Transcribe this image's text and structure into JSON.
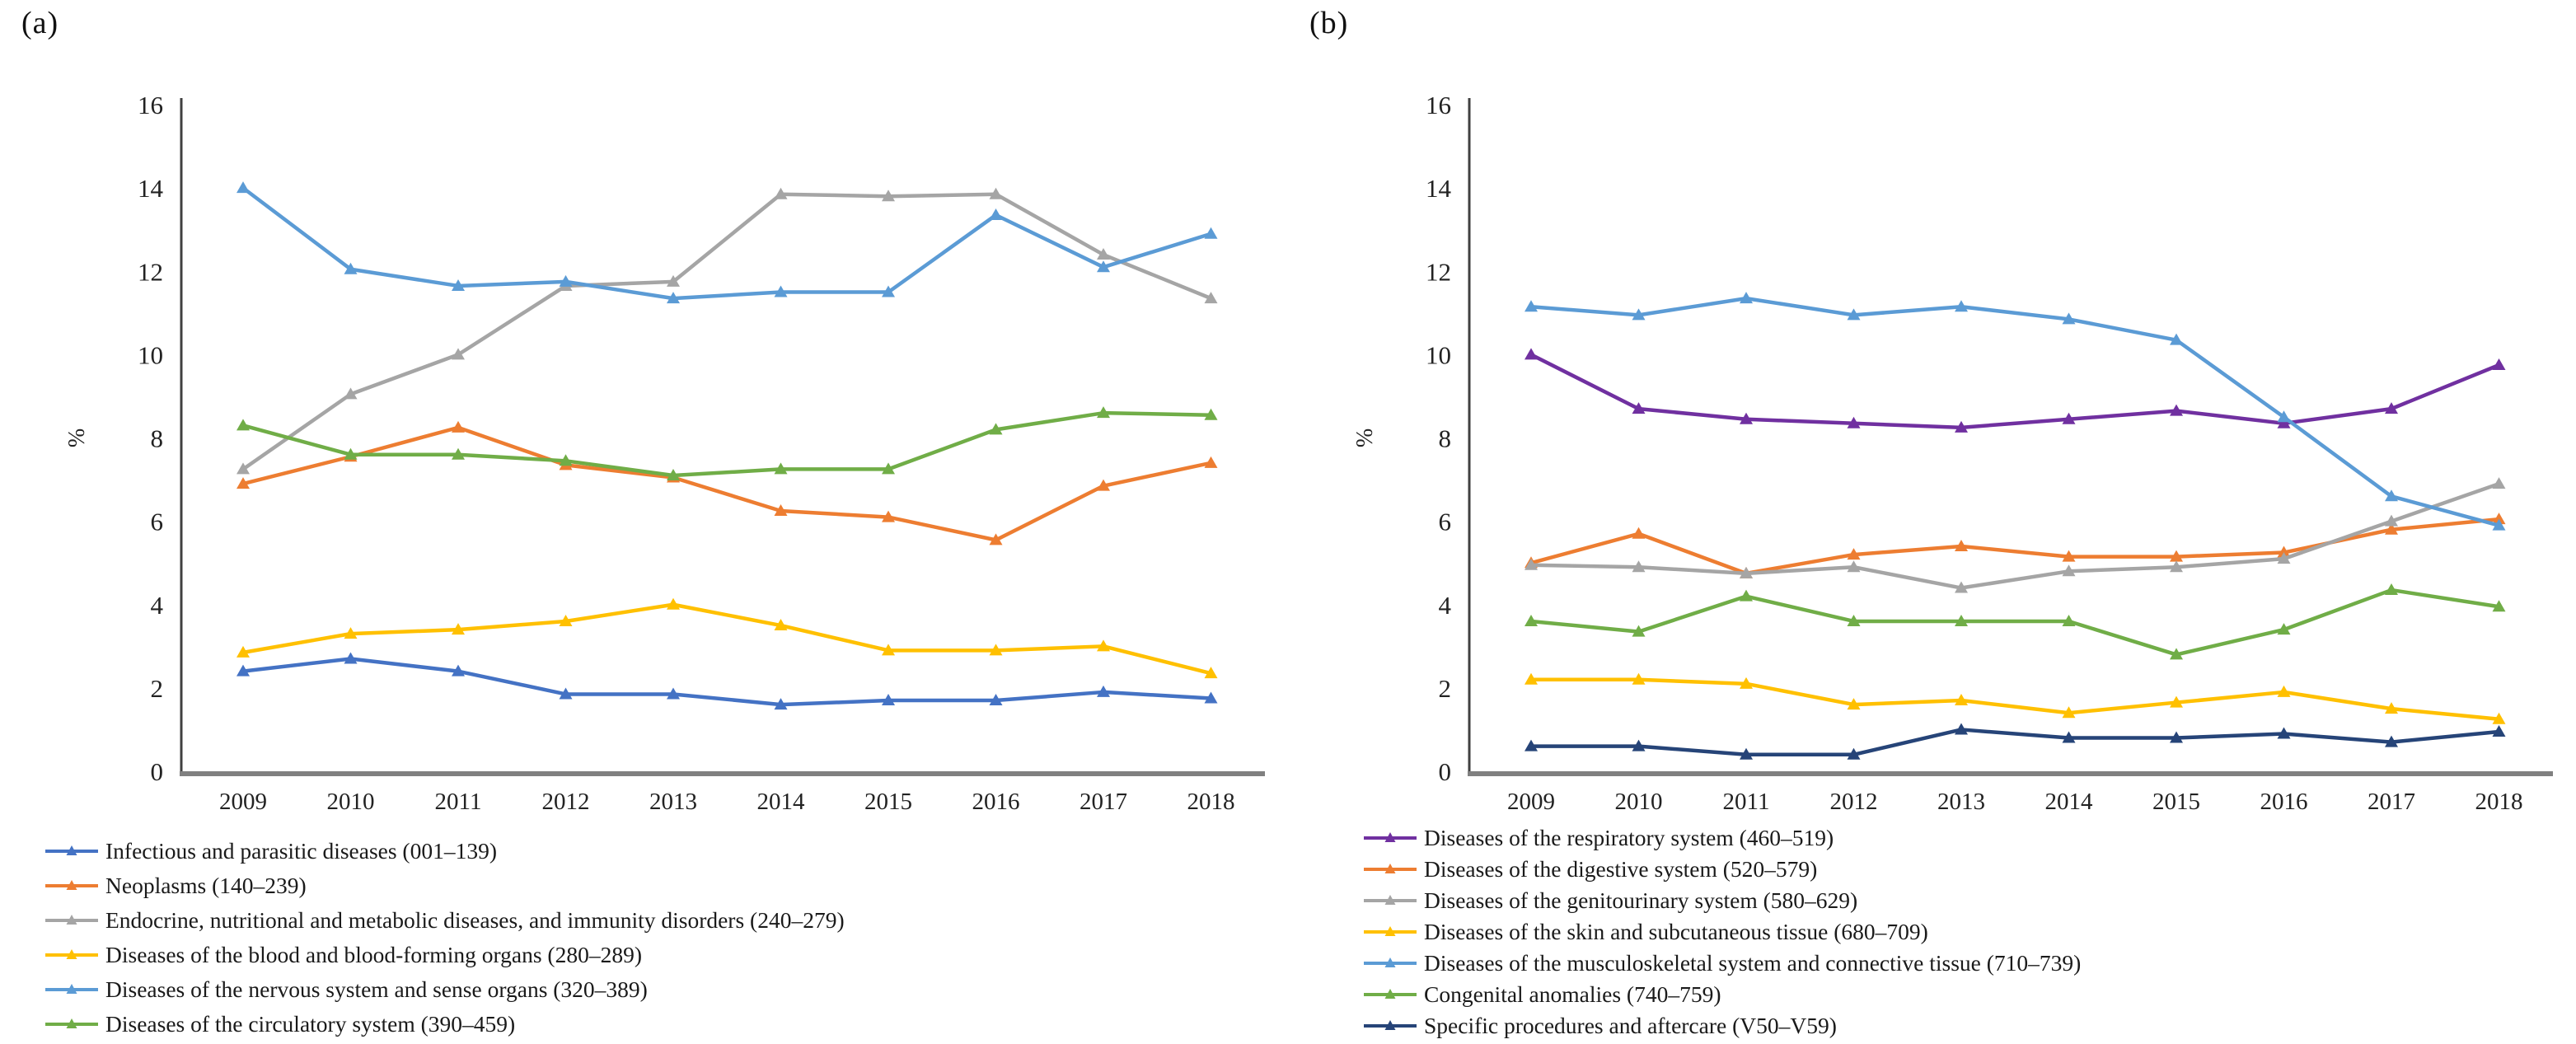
{
  "panels": [
    {
      "label": "(a)"
    },
    {
      "label": "(b)"
    }
  ],
  "chart_data": [
    {
      "type": "line",
      "title": "",
      "xlabel": "",
      "ylabel": "%",
      "ylim": [
        0,
        16
      ],
      "ytick_step": 2,
      "grid": false,
      "marker": "triangle",
      "legend_position": "below-left",
      "categories": [
        "2009",
        "2010",
        "2011",
        "2012",
        "2013",
        "2014",
        "2015",
        "2016",
        "2017",
        "2018"
      ],
      "series": [
        {
          "name": "Infectious and parasitic diseases (001–139)",
          "color": "#4472C4",
          "values": [
            2.4,
            2.7,
            2.4,
            1.85,
            1.85,
            1.6,
            1.7,
            1.7,
            1.9,
            1.75
          ]
        },
        {
          "name": "Neoplasms (140–239)",
          "color": "#ED7D31",
          "values": [
            6.9,
            7.55,
            8.25,
            7.35,
            7.05,
            6.25,
            6.1,
            5.55,
            6.85,
            7.4
          ]
        },
        {
          "name": "Endocrine, nutritional and metabolic diseases, and immunity disorders (240–279)",
          "color": "#A5A5A5",
          "values": [
            7.25,
            9.05,
            10.0,
            11.65,
            11.75,
            13.85,
            13.8,
            13.85,
            12.4,
            11.35
          ]
        },
        {
          "name": "Diseases of the blood and blood-forming organs (280–289)",
          "color": "#FFC000",
          "values": [
            2.85,
            3.3,
            3.4,
            3.6,
            4.0,
            3.5,
            2.9,
            2.9,
            3.0,
            2.35
          ]
        },
        {
          "name": "Diseases of the nervous system and sense organs (320–389)",
          "color": "#5B9BD5",
          "values": [
            14.0,
            12.05,
            11.65,
            11.75,
            11.35,
            11.5,
            11.5,
            13.35,
            12.1,
            12.9
          ]
        },
        {
          "name": "Diseases of the circulatory system (390–459)",
          "color": "#70AD47",
          "values": [
            8.3,
            7.6,
            7.6,
            7.45,
            7.1,
            7.25,
            7.25,
            8.2,
            8.6,
            8.55
          ]
        }
      ]
    },
    {
      "type": "line",
      "title": "",
      "xlabel": "",
      "ylabel": "%",
      "ylim": [
        0,
        16
      ],
      "ytick_step": 2,
      "grid": false,
      "marker": "triangle",
      "legend_position": "below-left",
      "categories": [
        "2009",
        "2010",
        "2011",
        "2012",
        "2013",
        "2014",
        "2015",
        "2016",
        "2017",
        "2018"
      ],
      "series": [
        {
          "name": "Diseases of the respiratory system (460–519)",
          "color": "#7030A0",
          "values": [
            10.0,
            8.7,
            8.45,
            8.35,
            8.25,
            8.45,
            8.65,
            8.35,
            8.7,
            9.75
          ]
        },
        {
          "name": "Diseases of the digestive system (520–579)",
          "color": "#ED7D31",
          "values": [
            5.0,
            5.7,
            4.75,
            5.2,
            5.4,
            5.15,
            5.15,
            5.25,
            5.8,
            6.05
          ]
        },
        {
          "name": "Diseases of the genitourinary system (580–629)",
          "color": "#A5A5A5",
          "values": [
            4.95,
            4.9,
            4.75,
            4.9,
            4.4,
            4.8,
            4.9,
            5.1,
            6.0,
            6.9
          ]
        },
        {
          "name": "Diseases of the skin and subcutaneous tissue (680–709)",
          "color": "#FFC000",
          "values": [
            2.2,
            2.2,
            2.1,
            1.6,
            1.7,
            1.4,
            1.65,
            1.9,
            1.5,
            1.25
          ]
        },
        {
          "name": "Diseases of the musculoskeletal system and connective tissue (710–739)",
          "color": "#5B9BD5",
          "values": [
            11.15,
            10.95,
            11.35,
            10.95,
            11.15,
            10.85,
            10.35,
            8.5,
            6.6,
            5.9
          ]
        },
        {
          "name": "Congenital anomalies (740–759)",
          "color": "#70AD47",
          "values": [
            3.6,
            3.35,
            4.2,
            3.6,
            3.6,
            3.6,
            2.8,
            3.4,
            4.35,
            3.95
          ]
        },
        {
          "name": "Specific procedures and aftercare (V50–V59)",
          "color": "#264478",
          "values": [
            0.6,
            0.6,
            0.4,
            0.4,
            1.0,
            0.8,
            0.8,
            0.9,
            0.7,
            0.95
          ]
        }
      ]
    }
  ]
}
